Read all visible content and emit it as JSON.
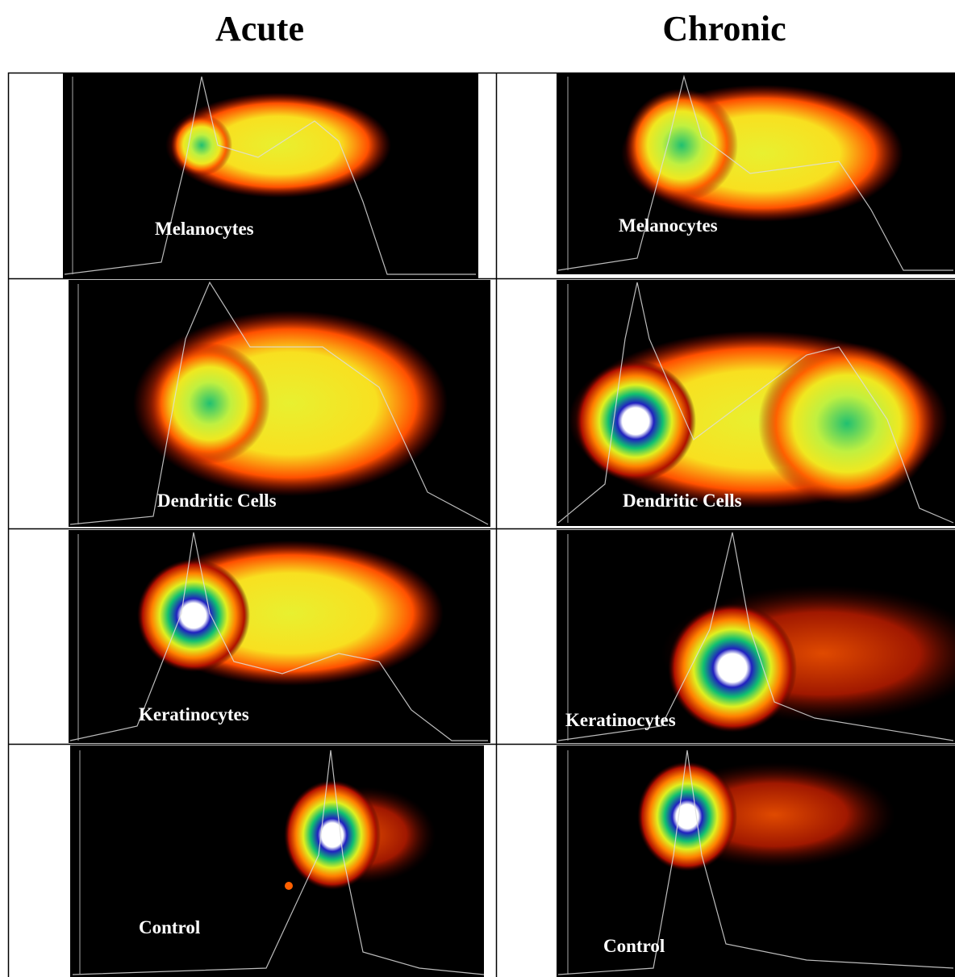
{
  "headers": [
    "Acute",
    "Chronic"
  ],
  "rows": [
    [
      "Melanocytes",
      "Melanocytes"
    ],
    [
      "Dendritic Cells",
      "Dendritic Cells"
    ],
    [
      "Keratinocytes",
      "Keratinocytes"
    ],
    [
      "Control",
      "Control"
    ]
  ]
}
